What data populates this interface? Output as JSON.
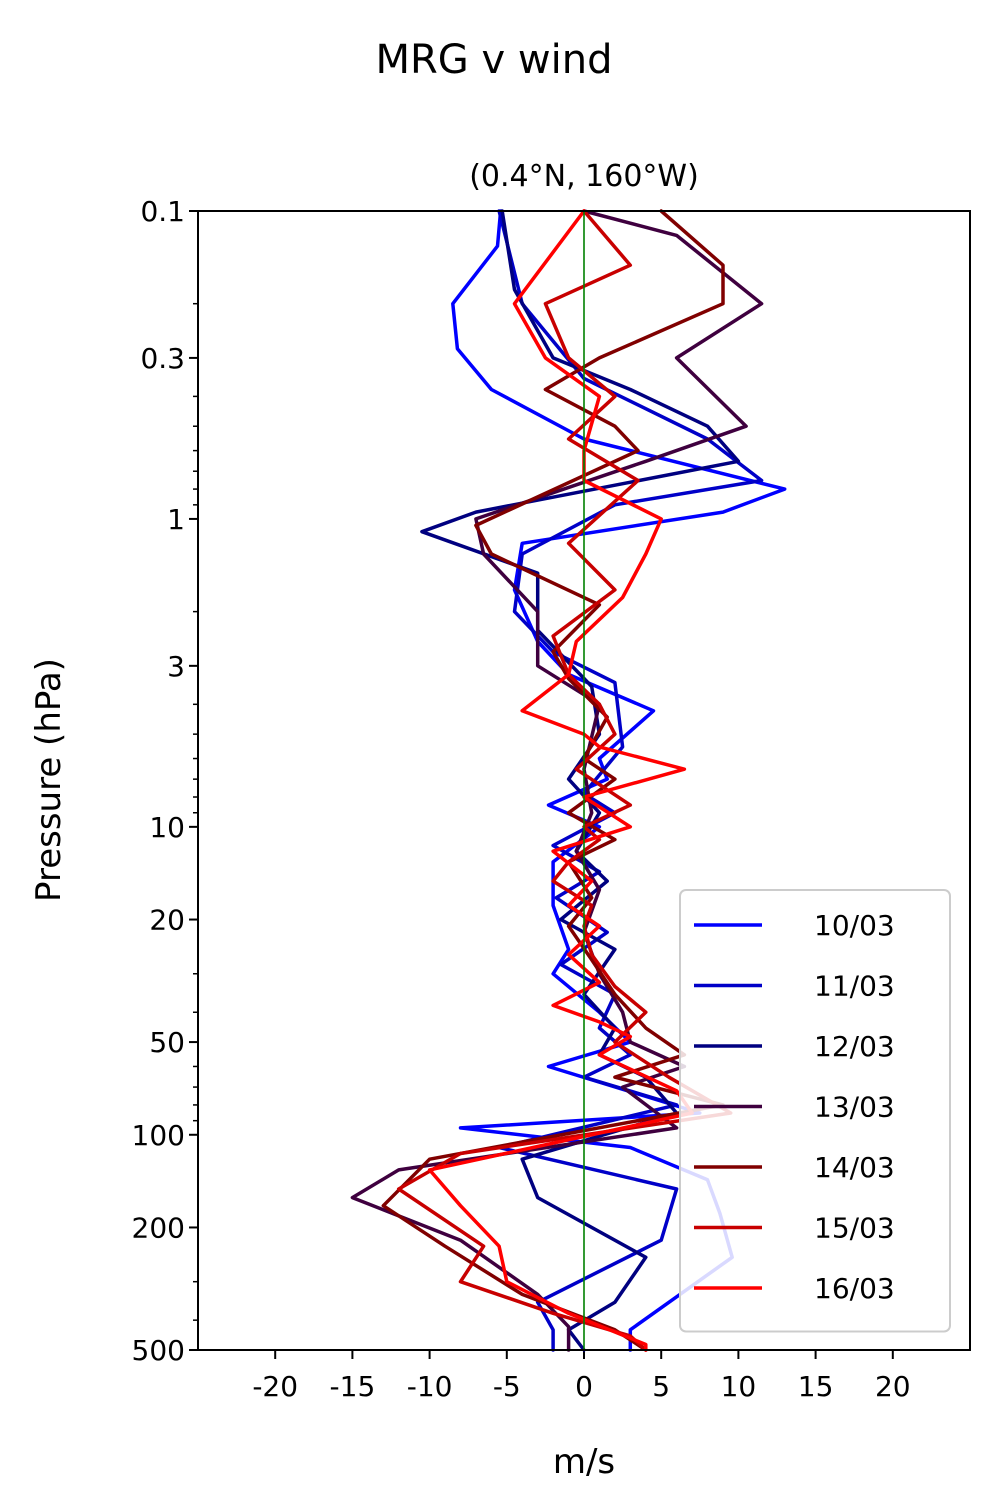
{
  "chart_data": {
    "type": "line",
    "suptitle": "MRG v wind",
    "title": "(0.4°N, 160°W)",
    "xlabel": "m/s",
    "ylabel": "Pressure (hPa)",
    "xlim": [
      -25,
      25
    ],
    "ylim": [
      500,
      0.1
    ],
    "yscale": "log",
    "xticks": [
      -20,
      -15,
      -10,
      -5,
      0,
      5,
      10,
      15,
      20
    ],
    "xtick_labels": [
      "-20",
      "-15",
      "-10",
      "-5",
      "0",
      "5",
      "10",
      "15",
      "20"
    ],
    "yticks": [
      0.1,
      0.3,
      1,
      3,
      10,
      20,
      50,
      100,
      200,
      500
    ],
    "ytick_labels": [
      "0.1",
      "0.3",
      "1",
      "3",
      "10",
      "20",
      "50",
      "100",
      "200",
      "500"
    ],
    "zero_line_color": "#008000",
    "legend_position": "lower-right",
    "series": [
      {
        "name": "10/03",
        "color": "#0000ff",
        "points": [
          [
            -5.4,
            0.1
          ],
          [
            -5.6,
            0.13
          ],
          [
            -8.5,
            0.2
          ],
          [
            -8.2,
            0.28
          ],
          [
            -6,
            0.38
          ],
          [
            0,
            0.55
          ],
          [
            13,
            0.8
          ],
          [
            9,
            0.95
          ],
          [
            -4,
            1.2
          ],
          [
            -4.5,
            1.7
          ],
          [
            -3,
            2.5
          ],
          [
            -1,
            3.2
          ],
          [
            4.5,
            4.2
          ],
          [
            1,
            6
          ],
          [
            1.5,
            7
          ],
          [
            -2.3,
            8.5
          ],
          [
            1,
            10
          ],
          [
            -2,
            13
          ],
          [
            -2,
            18
          ],
          [
            -1,
            25
          ],
          [
            -2,
            30
          ],
          [
            1,
            40
          ],
          [
            3,
            50
          ],
          [
            -2.3,
            60
          ],
          [
            7.5,
            85
          ],
          [
            -8,
            95
          ],
          [
            3,
            110
          ],
          [
            8,
            140
          ],
          [
            8.8,
            180
          ],
          [
            9.6,
            250
          ],
          [
            5.5,
            350
          ],
          [
            3,
            430
          ],
          [
            3,
            500
          ]
        ]
      },
      {
        "name": "11/03",
        "color": "#0000c8",
        "points": [
          [
            -5.5,
            0.1
          ],
          [
            -4,
            0.2
          ],
          [
            0,
            0.35
          ],
          [
            8,
            0.55
          ],
          [
            11.5,
            0.75
          ],
          [
            2,
            0.9
          ],
          [
            -4,
            1.3
          ],
          [
            -4.5,
            2
          ],
          [
            -2,
            2.7
          ],
          [
            2,
            3.4
          ],
          [
            2.5,
            5.5
          ],
          [
            0,
            7.8
          ],
          [
            2,
            9
          ],
          [
            -2,
            11.5
          ],
          [
            1,
            14
          ],
          [
            -1.8,
            17
          ],
          [
            1.5,
            22
          ],
          [
            -1.5,
            28
          ],
          [
            2,
            35
          ],
          [
            1,
            45
          ],
          [
            3,
            55
          ],
          [
            0,
            65
          ],
          [
            6,
            80
          ],
          [
            -5.5,
            110
          ],
          [
            6,
            150
          ],
          [
            5,
            220
          ],
          [
            -3,
            350
          ],
          [
            -2,
            430
          ],
          [
            -2,
            500
          ]
        ]
      },
      {
        "name": "12/03",
        "color": "#000080",
        "points": [
          [
            -5.3,
            0.1
          ],
          [
            -4.5,
            0.18
          ],
          [
            -2,
            0.3
          ],
          [
            3,
            0.38
          ],
          [
            8,
            0.5
          ],
          [
            10,
            0.65
          ],
          [
            -7,
            0.95
          ],
          [
            -10.5,
            1.1
          ],
          [
            -3,
            1.5
          ],
          [
            -3,
            2.3
          ],
          [
            0.5,
            3.5
          ],
          [
            1,
            5
          ],
          [
            -1,
            7
          ],
          [
            1,
            9
          ],
          [
            -0.5,
            12
          ],
          [
            1.5,
            15
          ],
          [
            -1.5,
            20
          ],
          [
            2,
            25
          ],
          [
            0,
            35
          ],
          [
            2,
            45
          ],
          [
            1,
            55
          ],
          [
            4,
            65
          ],
          [
            6,
            85
          ],
          [
            -4,
            120
          ],
          [
            -3,
            160
          ],
          [
            4,
            250
          ],
          [
            2,
            350
          ],
          [
            -1,
            430
          ],
          [
            0,
            500
          ]
        ]
      },
      {
        "name": "13/03",
        "color": "#3f003f",
        "points": [
          [
            0,
            0.1
          ],
          [
            6,
            0.12
          ],
          [
            11.5,
            0.2
          ],
          [
            6,
            0.3
          ],
          [
            10.5,
            0.5
          ],
          [
            4,
            0.65
          ],
          [
            -7,
            1
          ],
          [
            -6.5,
            1.3
          ],
          [
            -3,
            2
          ],
          [
            -3,
            3
          ],
          [
            1,
            4
          ],
          [
            0,
            6.5
          ],
          [
            0.5,
            9
          ],
          [
            -0.5,
            12
          ],
          [
            1,
            16
          ],
          [
            0,
            22
          ],
          [
            1,
            30
          ],
          [
            2.5,
            40
          ],
          [
            3,
            50
          ],
          [
            6.5,
            60
          ],
          [
            2.5,
            70
          ],
          [
            6,
            95
          ],
          [
            -12,
            130
          ],
          [
            -15,
            160
          ],
          [
            -8,
            220
          ],
          [
            -3,
            330
          ],
          [
            -1,
            420
          ],
          [
            -1,
            500
          ]
        ]
      },
      {
        "name": "14/03",
        "color": "#800000",
        "points": [
          [
            5,
            0.1
          ],
          [
            9,
            0.15
          ],
          [
            9,
            0.2
          ],
          [
            1,
            0.3
          ],
          [
            -2.5,
            0.38
          ],
          [
            2,
            0.5
          ],
          [
            3.5,
            0.6
          ],
          [
            -7,
            1.05
          ],
          [
            -6,
            1.3
          ],
          [
            1,
            1.9
          ],
          [
            -2,
            2.7
          ],
          [
            -1,
            3.3
          ],
          [
            1.5,
            4.4
          ],
          [
            0,
            6
          ],
          [
            2,
            7
          ],
          [
            -1,
            9
          ],
          [
            2,
            11
          ],
          [
            -1,
            13
          ],
          [
            0.5,
            17
          ],
          [
            -1,
            21
          ],
          [
            0.5,
            27
          ],
          [
            2,
            35
          ],
          [
            4,
            45
          ],
          [
            6.5,
            55
          ],
          [
            2,
            65
          ],
          [
            9,
            80
          ],
          [
            -10,
            120
          ],
          [
            -13,
            170
          ],
          [
            -9,
            230
          ],
          [
            -4,
            330
          ],
          [
            2,
            430
          ],
          [
            4,
            500
          ]
        ]
      },
      {
        "name": "15/03",
        "color": "#c80000",
        "points": [
          [
            0,
            0.1
          ],
          [
            3,
            0.15
          ],
          [
            -2.5,
            0.2
          ],
          [
            -1,
            0.3
          ],
          [
            2,
            0.4
          ],
          [
            -1,
            0.55
          ],
          [
            3.5,
            0.75
          ],
          [
            -1,
            1.2
          ],
          [
            2,
            1.7
          ],
          [
            -2,
            2.4
          ],
          [
            -1,
            3.2
          ],
          [
            1,
            4
          ],
          [
            2,
            5
          ],
          [
            -0.5,
            6.5
          ],
          [
            3,
            8.5
          ],
          [
            0,
            10
          ],
          [
            1,
            11
          ],
          [
            -1,
            13
          ],
          [
            -2,
            15
          ],
          [
            0.5,
            18
          ],
          [
            0,
            21
          ],
          [
            0.5,
            26
          ],
          [
            2,
            33
          ],
          [
            4,
            40
          ],
          [
            2,
            50
          ],
          [
            5.5,
            65
          ],
          [
            9.5,
            85
          ],
          [
            -8,
            115
          ],
          [
            -12,
            150
          ],
          [
            -6.5,
            230
          ],
          [
            -8,
            300
          ],
          [
            -2,
            380
          ],
          [
            3,
            450
          ],
          [
            4,
            500
          ]
        ]
      },
      {
        "name": "16/03",
        "color": "#ff0000",
        "points": [
          [
            0,
            0.1
          ],
          [
            -4.5,
            0.2
          ],
          [
            -2.5,
            0.3
          ],
          [
            1,
            0.4
          ],
          [
            0,
            0.6
          ],
          [
            0,
            0.75
          ],
          [
            5,
            1
          ],
          [
            4,
            1.3
          ],
          [
            2.5,
            1.8
          ],
          [
            -0.5,
            2.5
          ],
          [
            -1,
            3.2
          ],
          [
            -4,
            4.2
          ],
          [
            0,
            5
          ],
          [
            1,
            5.5
          ],
          [
            6.5,
            6.5
          ],
          [
            0,
            8
          ],
          [
            3,
            10
          ],
          [
            -2,
            12
          ],
          [
            0.5,
            15
          ],
          [
            -1,
            18
          ],
          [
            1,
            21
          ],
          [
            -1,
            26
          ],
          [
            1,
            32
          ],
          [
            -2,
            38
          ],
          [
            1,
            43
          ],
          [
            3,
            48
          ],
          [
            1,
            55
          ],
          [
            6,
            72
          ],
          [
            7,
            85
          ],
          [
            -10,
            130
          ],
          [
            -8,
            170
          ],
          [
            -5.5,
            230
          ],
          [
            -5,
            300
          ],
          [
            -1,
            380
          ],
          [
            4,
            480
          ],
          [
            4,
            500
          ]
        ]
      }
    ]
  }
}
